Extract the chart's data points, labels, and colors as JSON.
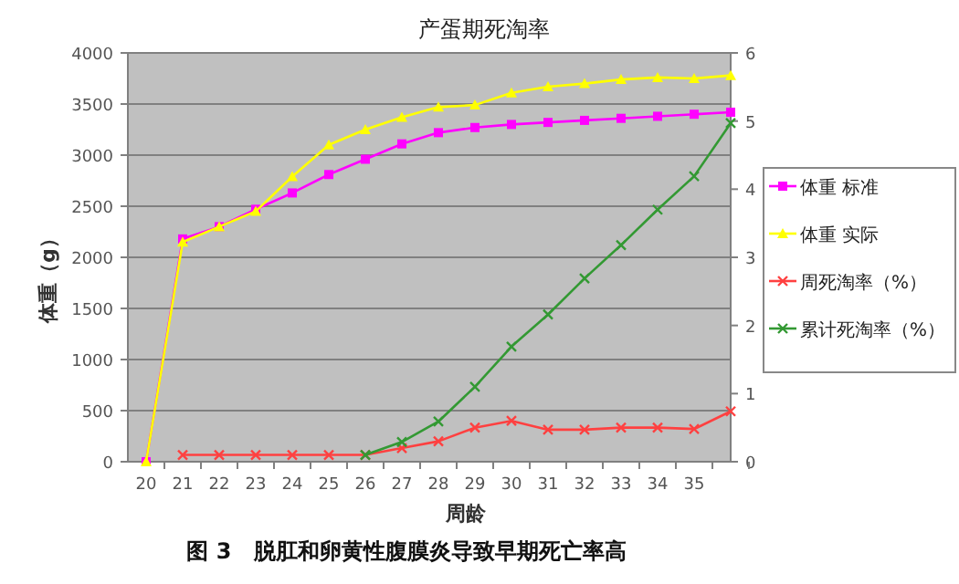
{
  "chart_data": {
    "type": "line",
    "title": "产蛋期死淘率",
    "xlabel": "周龄",
    "ylabel": "体重（g）",
    "categories": [
      "20",
      "21",
      "22",
      "23",
      "24",
      "25",
      "26",
      "27",
      "28",
      "29",
      "30",
      "31",
      "32",
      "33",
      "34",
      "35",
      null
    ],
    "series": [
      {
        "name": "体重 标准",
        "color": "#ff00ff",
        "marker": "square",
        "values": [
          0,
          2180,
          2300,
          2470,
          2630,
          2810,
          2960,
          3110,
          3220,
          3270,
          3300,
          3320,
          3340,
          3360,
          3380,
          3400,
          3420
        ]
      },
      {
        "name": "体重 实际",
        "color": "#ffff00",
        "marker": "triangle",
        "values": [
          0,
          2150,
          2300,
          2450,
          2790,
          3100,
          3250,
          3370,
          3470,
          3490,
          3610,
          3670,
          3700,
          3740,
          3760,
          3750,
          3780
        ]
      },
      {
        "name": "周死淘率（%）",
        "color": "#ff4040",
        "marker": "cross",
        "axis": "y2",
        "values": [
          null,
          0.1,
          0.1,
          0.1,
          0.1,
          0.1,
          0.1,
          0.2,
          0.3,
          0.5,
          0.6,
          0.47,
          0.47,
          0.5,
          0.5,
          0.48,
          0.74
        ]
      },
      {
        "name": "累计死淘率（%）",
        "color": "#339933",
        "marker": "cross",
        "axis": "y2",
        "values": [
          null,
          null,
          null,
          null,
          null,
          null,
          0.1,
          0.29,
          0.59,
          1.1,
          1.69,
          2.16,
          2.69,
          3.18,
          3.7,
          4.19,
          4.97
        ]
      }
    ],
    "ylim": [
      0,
      4000
    ],
    "yticks": [
      0,
      500,
      1000,
      1500,
      2000,
      2500,
      3000,
      3500,
      4000
    ],
    "y2lim": [
      0,
      6
    ],
    "y2ticks": [
      0,
      1,
      2,
      3,
      4,
      5,
      6
    ],
    "grid": "y",
    "legend": "right",
    "annotations": [
      "图 3　脱肛和卵黄性腹膜炎导致早期死亡率高"
    ]
  }
}
